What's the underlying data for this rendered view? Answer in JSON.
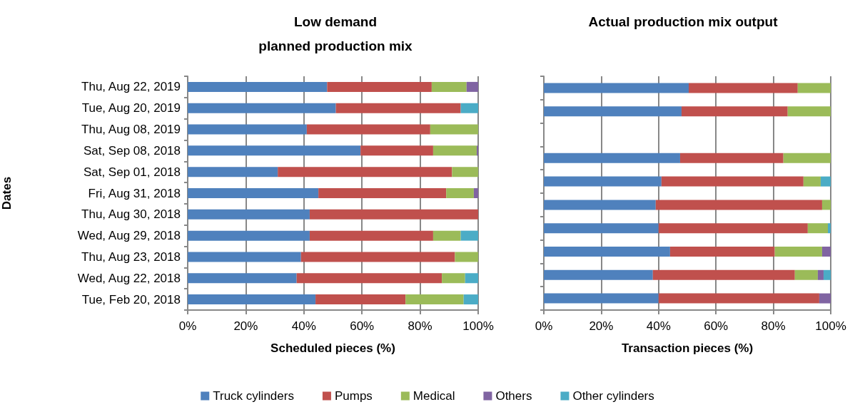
{
  "chart_data": [
    {
      "type": "bar",
      "orientation": "horizontal",
      "stacked": true,
      "title": "Low demand\nplanned production mix",
      "xlabel": "Scheduled pieces (%)",
      "ylabel": "Dates",
      "categories": [
        "Thu, Aug 22, 2019",
        "Tue, Aug 20, 2019",
        "Thu, Aug 08, 2019",
        "Sat, Sep 08, 2018",
        "Sat, Sep 01, 2018",
        "Fri, Aug 31, 2018",
        "Thu, Aug 30, 2018",
        "Wed, Aug 29, 2018",
        "Thu, Aug 23, 2018",
        "Wed, Aug 22, 2018",
        "Tue, Feb 20, 2018"
      ],
      "series": [
        {
          "name": "Truck cylinders",
          "color": "#4f81bd",
          "values": [
            48,
            51,
            41,
            59.5,
            31,
            45,
            42,
            42,
            39,
            37.5,
            44
          ]
        },
        {
          "name": "Pumps",
          "color": "#c0504d",
          "values": [
            36,
            43,
            42.5,
            25,
            60,
            44,
            58,
            42.5,
            53,
            50,
            31
          ]
        },
        {
          "name": "Medical",
          "color": "#9bbb59",
          "values": [
            12,
            0,
            16.5,
            15,
            9,
            9.5,
            0,
            9.5,
            8,
            8,
            20
          ]
        },
        {
          "name": "Others",
          "color": "#8064a2",
          "values": [
            4,
            0,
            0,
            0.5,
            0,
            1.5,
            0,
            0,
            0,
            0,
            0
          ]
        },
        {
          "name": "Other cylinders",
          "color": "#4bacc6",
          "values": [
            0,
            6,
            0,
            0,
            0,
            0,
            0,
            6,
            0,
            4.5,
            5
          ]
        }
      ],
      "xlim": [
        0,
        100
      ],
      "xticks": [
        {
          "value": 0,
          "label": "0%"
        },
        {
          "value": 20,
          "label": "20%"
        },
        {
          "value": 40,
          "label": "40%"
        },
        {
          "value": 60,
          "label": "60%"
        },
        {
          "value": 80,
          "label": "80%"
        },
        {
          "value": 100,
          "label": "100%"
        }
      ],
      "grid": "x",
      "legend": "bottom"
    },
    {
      "type": "bar",
      "orientation": "horizontal",
      "stacked": true,
      "title": "Actual production mix output",
      "xlabel": "Transaction pieces (%)",
      "categories": [
        null,
        null,
        null,
        null,
        null,
        null,
        null,
        null,
        null,
        null
      ],
      "series": [
        {
          "color": "#4f81bd",
          "values": [
            50.5,
            48,
            null,
            47.5,
            41,
            39,
            40,
            44,
            38,
            40
          ]
        },
        {
          "color": "#c0504d",
          "values": [
            38,
            37,
            null,
            36,
            49.5,
            58,
            52,
            36.5,
            49.5,
            56
          ]
        },
        {
          "color": "#9bbb59",
          "values": [
            11.5,
            15,
            null,
            16.5,
            6,
            3,
            7,
            16.5,
            8,
            0
          ]
        },
        {
          "color": "#8064a2",
          "values": [
            0,
            0,
            null,
            0,
            0,
            0,
            0,
            3,
            2,
            4
          ]
        },
        {
          "color": "#4bacc6",
          "values": [
            0,
            0,
            null,
            0,
            3.5,
            0,
            1,
            0,
            2.5,
            0
          ]
        }
      ],
      "xlim": [
        0,
        100
      ],
      "xticks": [
        {
          "value": 0,
          "label": "0%"
        },
        {
          "value": 20,
          "label": "20%"
        },
        {
          "value": 40,
          "label": "40%"
        },
        {
          "value": 60,
          "label": "60%"
        },
        {
          "value": 80,
          "label": "80%"
        },
        {
          "value": 100,
          "label": "100%"
        }
      ],
      "grid": "x",
      "tick_labels": "x"
    }
  ]
}
